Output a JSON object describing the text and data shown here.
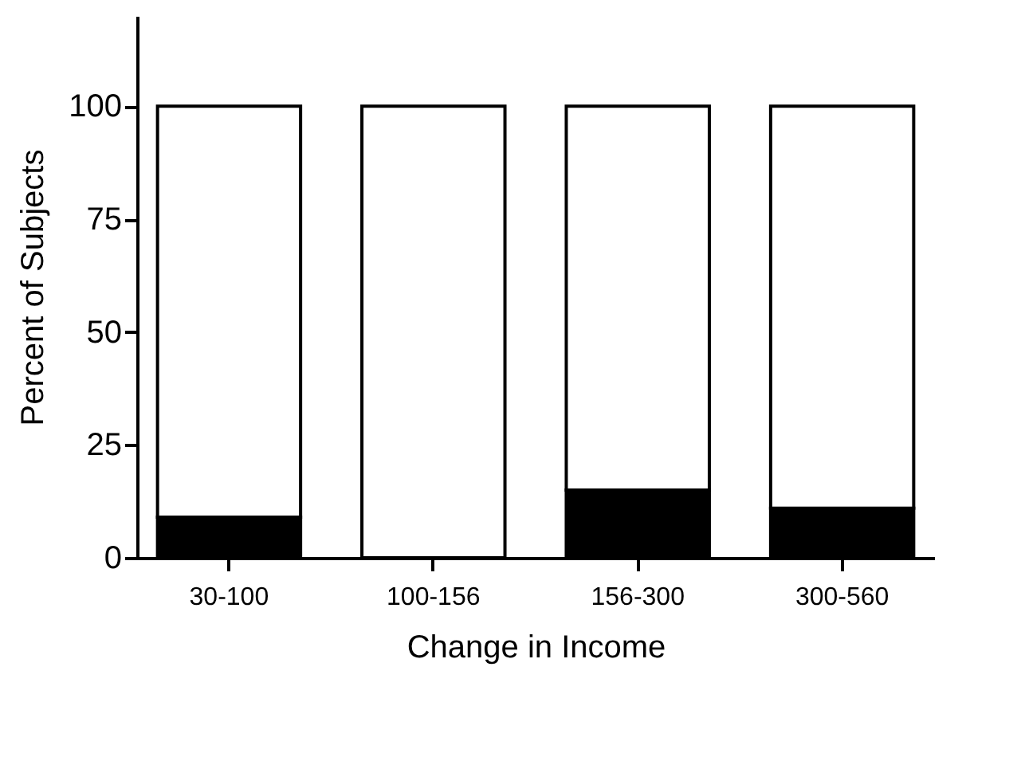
{
  "chart_data": {
    "type": "bar",
    "stacked": true,
    "xlabel": "Change in Income",
    "ylabel": "Percent of Subjects",
    "categories": [
      "30-100",
      "100-156",
      "156-300",
      "300-560"
    ],
    "series": [
      {
        "color": "#000000",
        "values": [
          9,
          0,
          15,
          11
        ]
      },
      {
        "color": "#ffffff",
        "values": [
          91,
          100,
          85,
          89
        ]
      }
    ],
    "ylim": [
      0,
      120
    ],
    "yticks": [
      0,
      25,
      50,
      75,
      100
    ],
    "grid": false,
    "legend": false
  }
}
